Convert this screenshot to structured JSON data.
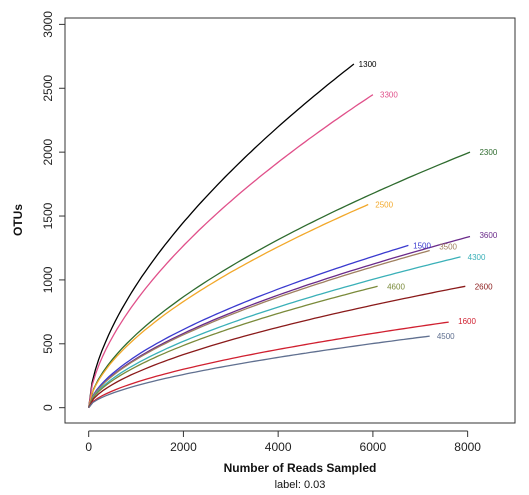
{
  "chart_data": {
    "type": "line",
    "title": "",
    "subtitle": "label: 0.03",
    "xlabel": "Number of Reads Sampled",
    "ylabel": "OTUs",
    "xlim": [
      -500,
      9000
    ],
    "ylim": [
      -120,
      3050
    ],
    "x_ticks": [
      0,
      2000,
      4000,
      6000,
      8000
    ],
    "y_ticks": [
      0,
      500,
      1000,
      1500,
      2000,
      2500,
      3000
    ],
    "grid": false,
    "legend": "none",
    "series": [
      {
        "name": "1300",
        "color": "#000000",
        "end": [
          5600,
          2690
        ],
        "label_at": [
          5700,
          2690
        ]
      },
      {
        "name": "3300",
        "color": "#e0508a",
        "end": [
          6000,
          2450
        ],
        "label_at": [
          6150,
          2450
        ]
      },
      {
        "name": "2300",
        "color": "#2e6b2e",
        "end": [
          8050,
          2000
        ],
        "label_at": [
          8250,
          2000
        ]
      },
      {
        "name": "2500",
        "color": "#f2a82a",
        "end": [
          5900,
          1590
        ],
        "label_at": [
          6050,
          1590
        ]
      },
      {
        "name": "3600",
        "color": "#6a2a8a",
        "end": [
          8050,
          1340
        ],
        "label_at": [
          8250,
          1350
        ]
      },
      {
        "name": "1500",
        "color": "#3a3acf",
        "end": [
          6750,
          1270
        ],
        "label_at": [
          6850,
          1270
        ]
      },
      {
        "name": "3500",
        "color": "#a08060",
        "end": [
          7200,
          1230
        ],
        "label_at": [
          7400,
          1260
        ]
      },
      {
        "name": "4300",
        "color": "#3ab0b8",
        "end": [
          7850,
          1180
        ],
        "label_at": [
          8000,
          1180
        ]
      },
      {
        "name": "4600",
        "color": "#7a8a3a",
        "end": [
          6100,
          950
        ],
        "label_at": [
          6300,
          950
        ]
      },
      {
        "name": "2600",
        "color": "#8a1a1a",
        "end": [
          7950,
          950
        ],
        "label_at": [
          8150,
          950
        ]
      },
      {
        "name": "1600",
        "color": "#d02030",
        "end": [
          7600,
          670
        ],
        "label_at": [
          7800,
          680
        ]
      },
      {
        "name": "4500",
        "color": "#607090",
        "end": [
          7200,
          560
        ],
        "label_at": [
          7350,
          560
        ]
      }
    ]
  }
}
